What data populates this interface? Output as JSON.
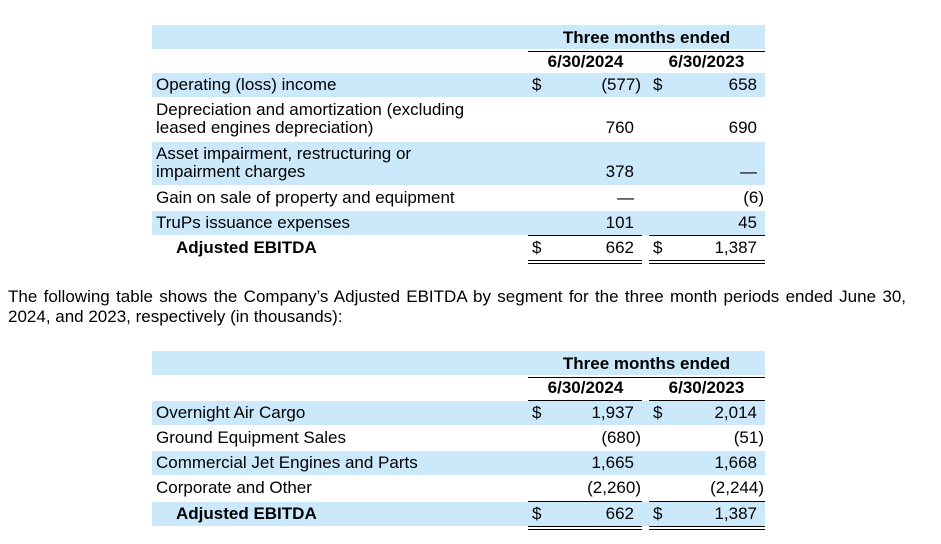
{
  "table1": {
    "header": {
      "period": "Three months ended",
      "col1": "6/30/2024",
      "col2": "6/30/2023"
    },
    "rows": [
      {
        "label": "Operating (loss) income",
        "d1": "$",
        "v1": "(577)",
        "d2": "$",
        "v2": "658"
      },
      {
        "label": "Depreciation and amortization (excluding leased engines depreciation)",
        "d1": "",
        "v1": "760",
        "d2": "",
        "v2": "690"
      },
      {
        "label": "Asset impairment, restructuring or impairment charges",
        "d1": "",
        "v1": "378",
        "d2": "",
        "v2": "—"
      },
      {
        "label": "Gain on sale of property and equipment",
        "d1": "",
        "v1": "—",
        "d2": "",
        "v2": "(6)"
      },
      {
        "label": "TruPs issuance expenses",
        "d1": "",
        "v1": "101",
        "d2": "",
        "v2": "45"
      },
      {
        "label": "Adjusted EBITDA",
        "d1": "$",
        "v1": "662",
        "d2": "$",
        "v2": "1,387"
      }
    ]
  },
  "paragraph": "The following table shows the Company’s Adjusted EBITDA by segment for the three month periods ended June 30, 2024, and 2023, respectively (in thousands):",
  "table2": {
    "header": {
      "period": "Three months ended",
      "col1": "6/30/2024",
      "col2": "6/30/2023"
    },
    "rows": [
      {
        "label": "Overnight Air Cargo",
        "d1": "$",
        "v1": "1,937",
        "d2": "$",
        "v2": "2,014"
      },
      {
        "label": "Ground Equipment Sales",
        "d1": "",
        "v1": "(680)",
        "d2": "",
        "v2": "(51)"
      },
      {
        "label": "Commercial Jet Engines and Parts",
        "d1": "",
        "v1": "1,665",
        "d2": "",
        "v2": "1,668"
      },
      {
        "label": "Corporate and Other",
        "d1": "",
        "v1": "(2,260)",
        "d2": "",
        "v2": "(2,244)"
      },
      {
        "label": "Adjusted EBITDA",
        "d1": "$",
        "v1": "662",
        "d2": "$",
        "v2": "1,387"
      }
    ]
  }
}
